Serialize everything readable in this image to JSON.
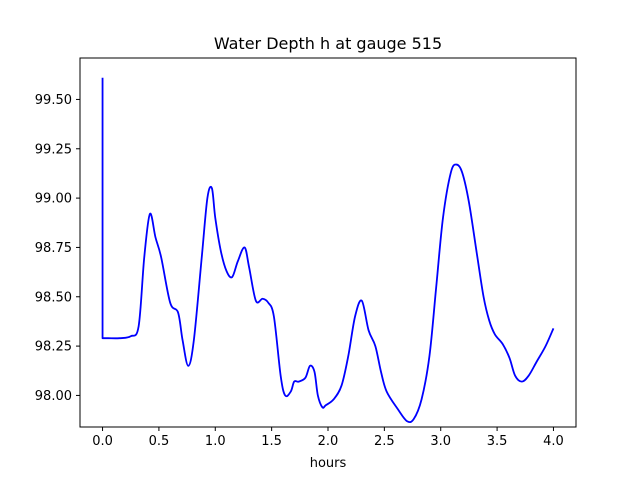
{
  "chart_data": {
    "type": "line",
    "title": "Water Depth h at gauge 515",
    "xlabel": "hours",
    "ylabel": "",
    "xlim": [
      -0.2,
      4.2
    ],
    "ylim": [
      97.84,
      99.71
    ],
    "xticks": [
      0.0,
      0.5,
      1.0,
      1.5,
      2.0,
      2.5,
      3.0,
      3.5,
      4.0
    ],
    "xtick_labels": [
      "0.0",
      "0.5",
      "1.0",
      "1.5",
      "2.0",
      "2.5",
      "3.0",
      "3.5",
      "4.0"
    ],
    "yticks": [
      98.0,
      98.25,
      98.5,
      98.75,
      99.0,
      99.25,
      99.5
    ],
    "ytick_labels": [
      "98.00",
      "98.25",
      "98.50",
      "98.75",
      "99.00",
      "99.25",
      "99.50"
    ],
    "grid": false,
    "series": [
      {
        "name": "",
        "color": "#0000ff",
        "x": [
          0.0,
          0.0,
          0.05,
          0.15,
          0.25,
          0.32,
          0.37,
          0.42,
          0.47,
          0.52,
          0.6,
          0.67,
          0.71,
          0.76,
          0.81,
          0.88,
          0.93,
          0.97,
          1.0,
          1.05,
          1.1,
          1.15,
          1.2,
          1.26,
          1.3,
          1.36,
          1.42,
          1.47,
          1.52,
          1.58,
          1.62,
          1.67,
          1.7,
          1.74,
          1.8,
          1.84,
          1.88,
          1.91,
          1.95,
          1.98,
          2.05,
          2.12,
          2.18,
          2.24,
          2.3,
          2.36,
          2.42,
          2.47,
          2.52,
          2.62,
          2.7,
          2.76,
          2.83,
          2.9,
          2.96,
          3.02,
          3.09,
          3.14,
          3.19,
          3.25,
          3.32,
          3.38,
          3.43,
          3.48,
          3.55,
          3.61,
          3.66,
          3.72,
          3.78,
          3.85,
          3.93,
          4.0
        ],
        "y": [
          99.61,
          98.29,
          98.29,
          98.29,
          98.3,
          98.35,
          98.7,
          98.92,
          98.8,
          98.7,
          98.47,
          98.42,
          98.28,
          98.15,
          98.28,
          98.7,
          99.0,
          99.05,
          98.9,
          98.73,
          98.63,
          98.6,
          98.68,
          98.75,
          98.65,
          98.48,
          98.49,
          98.47,
          98.4,
          98.1,
          98.0,
          98.02,
          98.07,
          98.07,
          98.09,
          98.15,
          98.12,
          98.0,
          97.94,
          97.95,
          97.98,
          98.05,
          98.2,
          98.4,
          98.48,
          98.33,
          98.25,
          98.12,
          98.02,
          97.93,
          97.87,
          97.88,
          97.98,
          98.2,
          98.55,
          98.9,
          99.13,
          99.17,
          99.13,
          98.98,
          98.72,
          98.5,
          98.38,
          98.31,
          98.26,
          98.19,
          98.1,
          98.07,
          98.1,
          98.17,
          98.25,
          98.34
        ]
      }
    ]
  }
}
